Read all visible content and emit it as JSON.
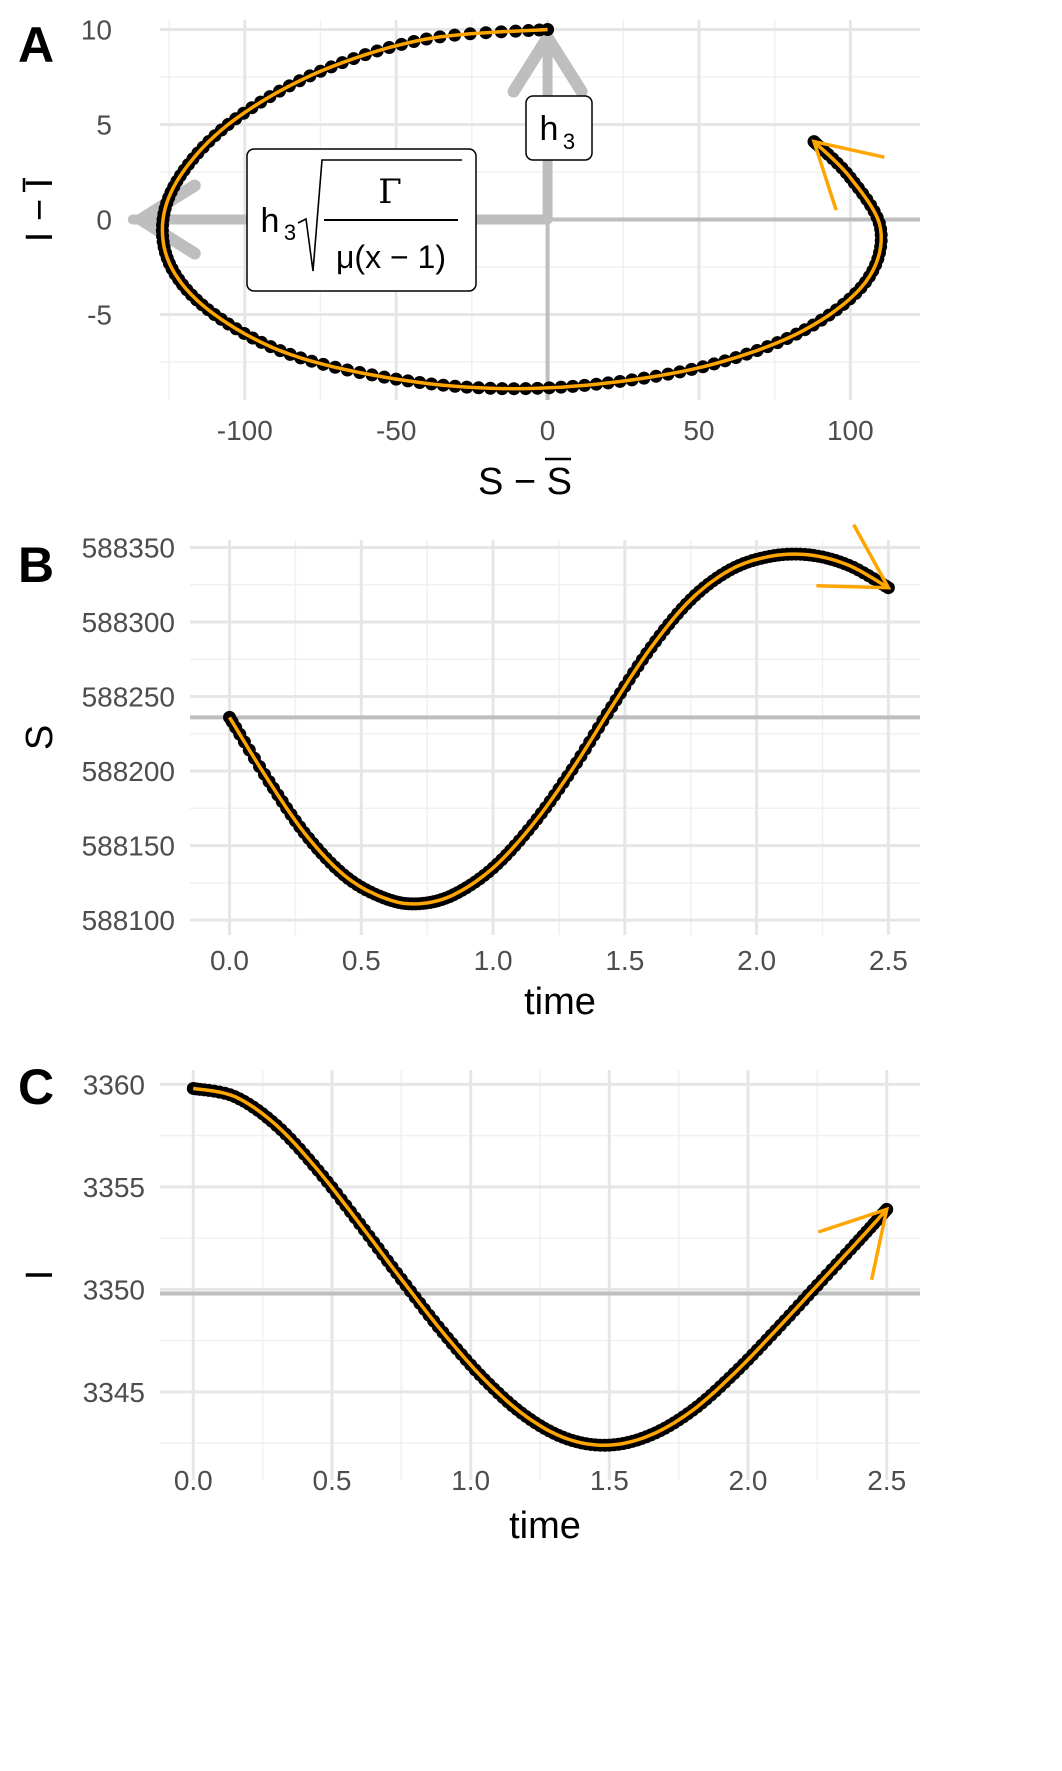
{
  "chart_data": [
    {
      "id": "A",
      "panel_label": "A",
      "type": "line",
      "xlabel": "S − S̄",
      "ylabel": "I − Ī",
      "xlim": [
        -128,
        123
      ],
      "ylim": [
        -9.5,
        10.5
      ],
      "x_ticks": [
        -100,
        -50,
        0,
        50,
        100
      ],
      "x_tick_labels": [
        "-100",
        "-50",
        "0",
        "50",
        "100"
      ],
      "y_ticks": [
        -5,
        0,
        5,
        10
      ],
      "y_tick_labels": [
        "-5",
        "0",
        "5",
        "10"
      ],
      "grid": true,
      "reference_lines": {
        "x": 0,
        "y": 0,
        "color": "#bebebe"
      },
      "amplitude_arrows": [
        {
          "direction": "vertical",
          "from": [
            0,
            0
          ],
          "to": [
            0,
            10
          ],
          "label": "h3"
        },
        {
          "direction": "horizontal",
          "from": [
            0,
            0
          ],
          "to": [
            -137,
            0
          ],
          "label": "h3·sqrt(Γ / (μ(x−1)))"
        }
      ],
      "series": [
        {
          "x": [
            0,
            -40,
            -75,
            -103,
            -120,
            -127,
            -124,
            -110,
            -85,
            -50,
            -15,
            20,
            55,
            85,
            105,
            110,
            100,
            88
          ],
          "y": [
            10,
            9.5,
            7.8,
            5.3,
            2.6,
            0,
            -2.6,
            -5.0,
            -7.1,
            -8.4,
            -8.9,
            -8.6,
            -7.6,
            -5.8,
            -3.3,
            -0.5,
            2.2,
            4.1
          ],
          "point_color": "#000000",
          "line_color": "#ffa500"
        }
      ],
      "direction_arrow_color": "#ffa500"
    },
    {
      "id": "B",
      "panel_label": "B",
      "type": "line",
      "xlabel": "time",
      "ylabel": "S",
      "xlim": [
        -0.15,
        2.62
      ],
      "ylim": [
        588090,
        588355
      ],
      "x_ticks": [
        0,
        0.5,
        1,
        1.5,
        2,
        2.5
      ],
      "x_tick_labels": [
        "0.0",
        "0.5",
        "1.0",
        "1.5",
        "2.0",
        "2.5"
      ],
      "y_ticks": [
        588100,
        588150,
        588200,
        588250,
        588300,
        588350
      ],
      "y_tick_labels": [
        "588100",
        "588150",
        "588200",
        "588250",
        "588300",
        "588350"
      ],
      "grid": true,
      "reference_lines": {
        "y": 588236,
        "color": "#bebebe"
      },
      "series": [
        {
          "x": [
            0,
            0.15,
            0.3,
            0.45,
            0.6,
            0.72,
            0.85,
            1.0,
            1.15,
            1.3,
            1.45,
            1.6,
            1.75,
            1.9,
            2.05,
            2.2,
            2.35,
            2.5
          ],
          "y": [
            588236,
            588193,
            588155,
            588128,
            588114,
            588111,
            588117,
            588135,
            588164,
            588201,
            588243,
            588283,
            588315,
            588335,
            588344,
            588345,
            588338,
            588323
          ],
          "point_color": "#000000",
          "line_color": "#ffa500"
        }
      ],
      "direction_arrow_color": "#ffa500"
    },
    {
      "id": "C",
      "panel_label": "C",
      "type": "line",
      "xlabel": "time",
      "ylabel": "I",
      "xlim": [
        -0.12,
        2.62
      ],
      "ylim": [
        3340.7,
        3360.7
      ],
      "x_ticks": [
        0,
        0.5,
        1,
        1.5,
        2,
        2.5
      ],
      "x_tick_labels": [
        "0.0",
        "0.5",
        "1.0",
        "1.5",
        "2.0",
        "2.5"
      ],
      "y_ticks": [
        3345,
        3350,
        3355,
        3360
      ],
      "y_tick_labels": [
        "3345",
        "3350",
        "3355",
        "3360"
      ],
      "grid": true,
      "reference_lines": {
        "y": 3349.8,
        "color": "#bebebe"
      },
      "series": [
        {
          "x": [
            0,
            0.15,
            0.3,
            0.45,
            0.6,
            0.75,
            0.9,
            1.05,
            1.2,
            1.35,
            1.5,
            1.65,
            1.8,
            1.95,
            2.1,
            2.25,
            2.4,
            2.5
          ],
          "y": [
            3359.8,
            3359.4,
            3358.0,
            3355.8,
            3353.2,
            3350.5,
            3347.9,
            3345.6,
            3343.8,
            3342.7,
            3342.4,
            3342.9,
            3344.1,
            3345.9,
            3348.0,
            3350.2,
            3352.4,
            3353.9
          ],
          "point_color": "#000000",
          "line_color": "#ffa500"
        }
      ],
      "direction_arrow_color": "#ffa500"
    }
  ]
}
